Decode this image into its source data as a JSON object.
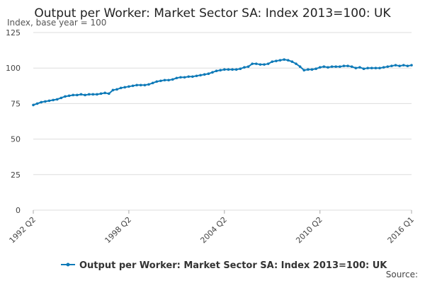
{
  "chart_data": {
    "type": "line",
    "title": "Output per Worker: Market Sector SA: Index 2013=100: UK",
    "subtitle": "Index, base year = 100",
    "source": "Source:",
    "categories": [
      "1992 Q2",
      null,
      null,
      null,
      null,
      null,
      null,
      null,
      null,
      null,
      null,
      null,
      null,
      null,
      null,
      null,
      null,
      null,
      null,
      null,
      null,
      null,
      null,
      null,
      "1998 Q2",
      null,
      null,
      null,
      null,
      null,
      null,
      null,
      null,
      null,
      null,
      null,
      null,
      null,
      null,
      null,
      null,
      null,
      null,
      null,
      null,
      null,
      null,
      null,
      "2004 Q2",
      null,
      null,
      null,
      null,
      null,
      null,
      null,
      null,
      null,
      null,
      null,
      null,
      null,
      null,
      null,
      null,
      null,
      null,
      null,
      null,
      null,
      null,
      null,
      "2010 Q2",
      null,
      null,
      null,
      null,
      null,
      null,
      null,
      null,
      null,
      null,
      null,
      null,
      null,
      null,
      null,
      null,
      null,
      null,
      null,
      null,
      null,
      null,
      "2016 Q1"
    ],
    "series": [
      {
        "name": "Output per Worker: Market Sector SA: Index 2013=100: UK",
        "color": "#0e7ab8",
        "values": [
          74,
          75,
          76,
          76.5,
          77,
          77.5,
          78,
          79,
          80,
          80.5,
          81,
          81,
          81.5,
          81,
          81.5,
          81.5,
          81.5,
          82,
          82.5,
          82,
          84.5,
          85,
          86,
          86.5,
          87,
          87.5,
          88,
          88,
          88,
          88.5,
          89.5,
          90.5,
          91,
          91.5,
          91.5,
          92,
          93,
          93.5,
          93.5,
          94,
          94,
          94.5,
          95,
          95.5,
          96,
          97,
          98,
          98.5,
          99,
          99,
          99,
          99,
          99.5,
          100.5,
          101,
          103,
          103,
          102.5,
          102.5,
          103,
          104.5,
          105,
          105.5,
          106,
          105.5,
          104.5,
          103,
          101,
          98.5,
          99,
          99,
          99.5,
          100.5,
          101,
          100.5,
          101,
          101,
          101,
          101.5,
          101.5,
          101,
          100,
          100.5,
          99.5,
          100,
          100,
          100,
          100,
          100.5,
          101,
          101.5,
          102,
          101.5,
          102,
          101.5,
          102
        ]
      }
    ],
    "ylim": [
      0,
      125
    ],
    "yticks": [
      0,
      25,
      50,
      75,
      100,
      125
    ],
    "grid": true
  }
}
